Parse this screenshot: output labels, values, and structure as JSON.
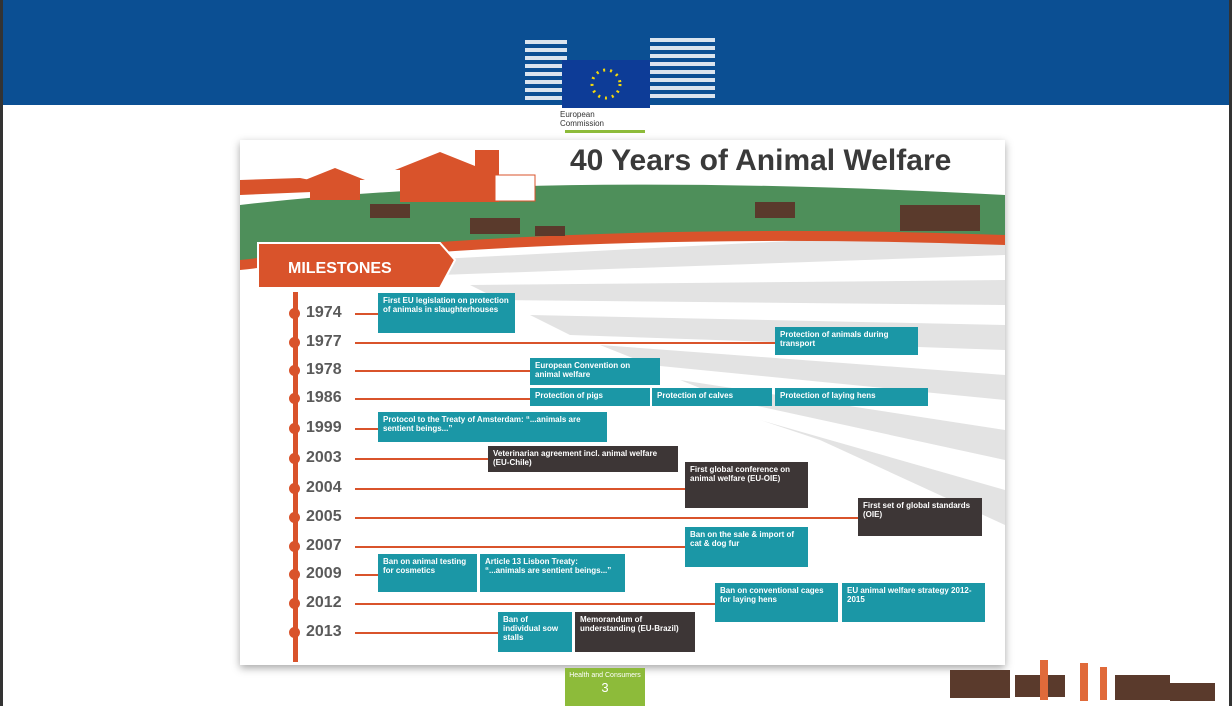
{
  "header": {
    "logo_text": "European Commission"
  },
  "infographic": {
    "title": "40 Years of Animal Welfare",
    "section": "MILESTONES",
    "milestones": [
      {
        "year": "1974",
        "events": [
          {
            "text": "First EU legislation on protection of animals in slaughterhouses",
            "color": "#1b97a6"
          }
        ]
      },
      {
        "year": "1977",
        "events": [
          {
            "text": "Protection of animals during transport",
            "color": "#1b97a6"
          }
        ]
      },
      {
        "year": "1978",
        "events": [
          {
            "text": "European Convention on animal welfare",
            "color": "#1b97a6"
          }
        ]
      },
      {
        "year": "1986",
        "events": [
          {
            "text": "Protection of pigs",
            "color": "#1b97a6"
          },
          {
            "text": "Protection of calves",
            "color": "#1b97a6"
          },
          {
            "text": "Protection of laying hens",
            "color": "#1b97a6"
          }
        ]
      },
      {
        "year": "1999",
        "events": [
          {
            "text": "Protocol to the Treaty of Amsterdam: “...animals are sentient beings...”",
            "color": "#1b97a6"
          }
        ]
      },
      {
        "year": "2003",
        "events": [
          {
            "text": "Veterinarian agreement incl. animal welfare (EU-Chile)",
            "color": "#3d3636"
          }
        ]
      },
      {
        "year": "2004",
        "events": [
          {
            "text": "First global conference on animal welfare (EU-OIE)",
            "color": "#3d3636"
          }
        ]
      },
      {
        "year": "2005",
        "events": [
          {
            "text": "First set of global standards (OIE)",
            "color": "#3d3636"
          }
        ]
      },
      {
        "year": "2007",
        "events": [
          {
            "text": "Ban on the sale & import of cat & dog fur",
            "color": "#1b97a6"
          }
        ]
      },
      {
        "year": "2009",
        "events": [
          {
            "text": "Ban on animal testing for cosmetics",
            "color": "#1b97a6"
          },
          {
            "text": "Article 13 Lisbon Treaty: “...animals are sentient beings...”",
            "color": "#1b97a6"
          }
        ]
      },
      {
        "year": "2012",
        "events": [
          {
            "text": "Ban on conventional cages for laying hens",
            "color": "#1b97a6"
          },
          {
            "text": "EU animal welfare strategy 2012-2015",
            "color": "#1b97a6"
          }
        ]
      },
      {
        "year": "2013",
        "events": [
          {
            "text": "Ban of individual sow stalls",
            "color": "#1b97a6"
          },
          {
            "text": "Memorandum of understanding (EU-Brazil)",
            "color": "#3d3636"
          }
        ]
      }
    ]
  },
  "footer": {
    "department": "Health and Consumers",
    "page": "3"
  }
}
